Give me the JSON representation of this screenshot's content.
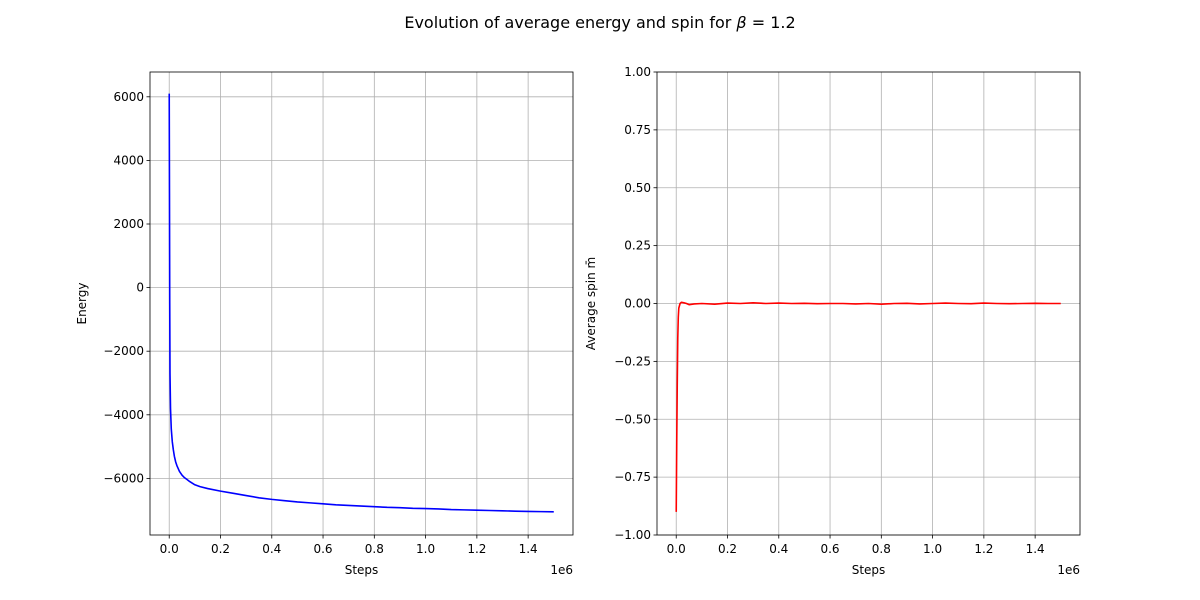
{
  "figure": {
    "title_prefix": "Evolution of average energy and spin for ",
    "title_symbol": "β",
    "title_suffix": " = 1.2"
  },
  "chart_data": [
    {
      "type": "line",
      "xlabel": "Steps",
      "ylabel": "Energy",
      "x_offset_label": "1e6",
      "xlim": [
        -0.075,
        1.575
      ],
      "ylim": [
        -7780,
        6780
      ],
      "x_scale": 1000000,
      "xticks": [
        0.0,
        0.2,
        0.4,
        0.6,
        0.8,
        1.0,
        1.2,
        1.4
      ],
      "xtick_labels": [
        "0.0",
        "0.2",
        "0.4",
        "0.6",
        "0.8",
        "1.0",
        "1.2",
        "1.4"
      ],
      "yticks": [
        -6000,
        -4000,
        -2000,
        0,
        2000,
        4000,
        6000
      ],
      "ytick_labels": [
        "−6000",
        "−4000",
        "−2000",
        "0",
        "2000",
        "4000",
        "6000"
      ],
      "grid": true,
      "series": [
        {
          "color": "#0000ff",
          "x": [
            0,
            0.001,
            0.002,
            0.003,
            0.005,
            0.008,
            0.012,
            0.016,
            0.02,
            0.025,
            0.03,
            0.04,
            0.05,
            0.06,
            0.07,
            0.08,
            0.1,
            0.12,
            0.15,
            0.2,
            0.25,
            0.3,
            0.35,
            0.4,
            0.45,
            0.5,
            0.55,
            0.6,
            0.65,
            0.7,
            0.75,
            0.8,
            0.85,
            0.9,
            0.95,
            1.0,
            1.05,
            1.1,
            1.15,
            1.2,
            1.25,
            1.3,
            1.35,
            1.4,
            1.45,
            1.5
          ],
          "y": [
            6100,
            3000,
            -500,
            -2700,
            -3800,
            -4450,
            -4850,
            -5100,
            -5300,
            -5480,
            -5600,
            -5780,
            -5900,
            -5980,
            -6040,
            -6100,
            -6200,
            -6260,
            -6320,
            -6400,
            -6470,
            -6540,
            -6610,
            -6660,
            -6700,
            -6740,
            -6770,
            -6800,
            -6830,
            -6850,
            -6870,
            -6890,
            -6910,
            -6920,
            -6940,
            -6950,
            -6960,
            -6980,
            -6990,
            -7000,
            -7010,
            -7020,
            -7030,
            -7040,
            -7045,
            -7050
          ]
        }
      ]
    },
    {
      "type": "line",
      "xlabel": "Steps",
      "ylabel": "Average spin m̄",
      "x_offset_label": "1e6",
      "xlim": [
        -0.075,
        1.575
      ],
      "ylim": [
        -1.0,
        1.0
      ],
      "x_scale": 1000000,
      "xticks": [
        0.0,
        0.2,
        0.4,
        0.6,
        0.8,
        1.0,
        1.2,
        1.4
      ],
      "xtick_labels": [
        "0.0",
        "0.2",
        "0.4",
        "0.6",
        "0.8",
        "1.0",
        "1.2",
        "1.4"
      ],
      "yticks": [
        -1.0,
        -0.75,
        -0.5,
        -0.25,
        0.0,
        0.25,
        0.5,
        0.75,
        1.0
      ],
      "ytick_labels": [
        "−1.00",
        "−0.75",
        "−0.50",
        "−0.25",
        "0.00",
        "0.25",
        "0.50",
        "0.75",
        "1.00"
      ],
      "grid": true,
      "series": [
        {
          "color": "#ff0000",
          "x": [
            0,
            0.002,
            0.004,
            0.006,
            0.008,
            0.01,
            0.015,
            0.02,
            0.03,
            0.04,
            0.05,
            0.07,
            0.1,
            0.15,
            0.2,
            0.25,
            0.3,
            0.35,
            0.4,
            0.45,
            0.5,
            0.55,
            0.6,
            0.65,
            0.7,
            0.75,
            0.8,
            0.85,
            0.9,
            0.95,
            1.0,
            1.05,
            1.1,
            1.15,
            1.2,
            1.25,
            1.3,
            1.35,
            1.4,
            1.45,
            1.5
          ],
          "y": [
            -0.9,
            -0.6,
            -0.35,
            -0.15,
            -0.06,
            -0.02,
            0.0,
            0.005,
            0.003,
            0.0,
            -0.005,
            -0.002,
            0.0,
            -0.003,
            0.002,
            0.0,
            0.003,
            0.0,
            0.002,
            0.0,
            0.001,
            -0.001,
            0.0,
            0.0,
            -0.002,
            0.0,
            -0.003,
            0.0,
            0.001,
            -0.002,
            0.0,
            0.002,
            0.0,
            -0.001,
            0.002,
            0.0,
            -0.001,
            0.0,
            0.001,
            0.0,
            0.0
          ]
        }
      ]
    }
  ]
}
